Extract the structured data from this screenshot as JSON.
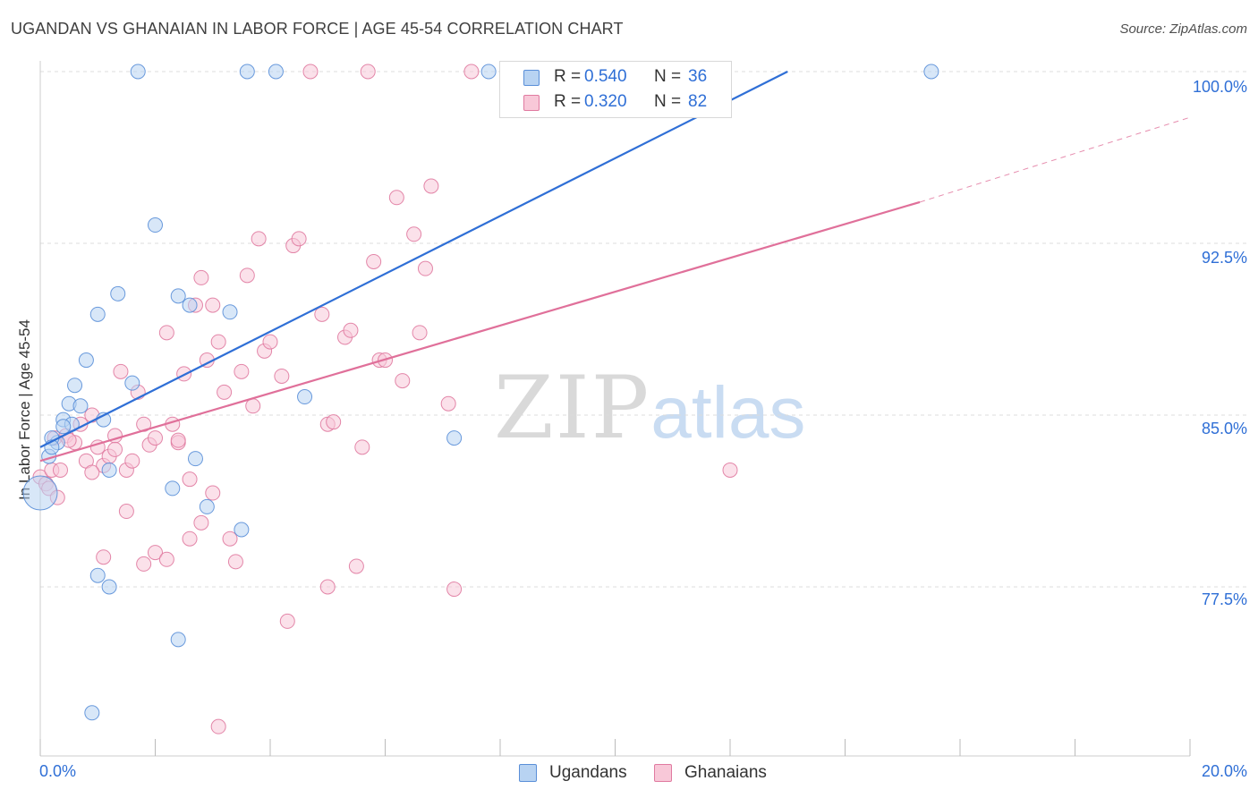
{
  "title": "UGANDAN VS GHANAIAN IN LABOR FORCE | AGE 45-54 CORRELATION CHART",
  "source": "Source: ZipAtlas.com",
  "watermark": {
    "zip": "ZIP",
    "atlas": "atlas"
  },
  "legend": {
    "rows": [
      {
        "r_label": "R =",
        "r_value": "0.540",
        "n_label": "N =",
        "n_value": "36",
        "fill": "#b8d3f2",
        "stroke": "#5a8fd8"
      },
      {
        "r_label": "R =",
        "r_value": "0.320",
        "n_label": "N =",
        "n_value": "82",
        "fill": "#f8c8d8",
        "stroke": "#e07aa0"
      }
    ]
  },
  "bottom_legend": [
    {
      "label": "Ugandans",
      "fill": "#b8d3f2",
      "stroke": "#5a8fd8"
    },
    {
      "label": "Ghanaians",
      "fill": "#f8c8d8",
      "stroke": "#e07aa0"
    }
  ],
  "chart_data": {
    "type": "scatter",
    "title": "UGANDAN VS GHANAIAN IN LABOR FORCE | AGE 45-54 CORRELATION CHART",
    "xlabel": "",
    "ylabel": "In Labor Force | Age 45-54",
    "xlim": [
      0,
      20
    ],
    "ylim": [
      71.2,
      100.8
    ],
    "x_tick_labels": [
      "0.0%",
      "20.0%"
    ],
    "x_minor_ticks": [
      0,
      2,
      4,
      6,
      8,
      10,
      12,
      14,
      16,
      18,
      20
    ],
    "y_ticks": [
      77.5,
      85.0,
      92.5,
      100.0
    ],
    "y_tick_labels": [
      "77.5%",
      "85.0%",
      "92.5%",
      "100.0%"
    ],
    "grid": true,
    "series": [
      {
        "name": "Ugandans",
        "color": "#5a8fd8",
        "fill": "#b8d3f2",
        "points": [
          [
            0.0,
            81.6
          ],
          [
            0.15,
            83.2
          ],
          [
            0.3,
            83.8
          ],
          [
            0.4,
            84.8
          ],
          [
            0.55,
            84.6
          ],
          [
            0.5,
            85.5
          ],
          [
            0.6,
            86.3
          ],
          [
            0.7,
            85.4
          ],
          [
            0.8,
            87.4
          ],
          [
            0.2,
            84.0
          ],
          [
            1.0,
            89.4
          ],
          [
            1.1,
            84.8
          ],
          [
            1.2,
            82.6
          ],
          [
            1.35,
            90.3
          ],
          [
            1.6,
            86.4
          ],
          [
            1.7,
            100.0
          ],
          [
            2.0,
            93.3
          ],
          [
            2.3,
            81.8
          ],
          [
            2.4,
            90.2
          ],
          [
            2.6,
            89.8
          ],
          [
            2.7,
            83.1
          ],
          [
            2.9,
            81.0
          ],
          [
            3.3,
            89.5
          ],
          [
            3.5,
            80.0
          ],
          [
            3.6,
            100.0
          ],
          [
            4.1,
            100.0
          ],
          [
            4.6,
            85.8
          ],
          [
            7.2,
            84.0
          ],
          [
            7.8,
            100.0
          ],
          [
            15.5,
            100.0
          ],
          [
            1.2,
            77.5
          ],
          [
            1.0,
            78.0
          ],
          [
            2.4,
            75.2
          ],
          [
            0.9,
            72.0
          ],
          [
            0.2,
            83.6
          ],
          [
            0.4,
            84.5
          ]
        ]
      },
      {
        "name": "Ghanaians",
        "color": "#e07aa0",
        "fill": "#f8c8d8",
        "points": [
          [
            0.0,
            82.3
          ],
          [
            0.1,
            82.0
          ],
          [
            0.15,
            81.8
          ],
          [
            0.2,
            82.6
          ],
          [
            0.3,
            81.4
          ],
          [
            0.25,
            84.0
          ],
          [
            0.35,
            82.6
          ],
          [
            0.45,
            84.1
          ],
          [
            0.6,
            83.8
          ],
          [
            0.7,
            84.6
          ],
          [
            0.8,
            83.0
          ],
          [
            0.9,
            85.0
          ],
          [
            1.0,
            83.6
          ],
          [
            1.1,
            82.8
          ],
          [
            1.2,
            83.2
          ],
          [
            1.3,
            84.1
          ],
          [
            1.4,
            86.9
          ],
          [
            1.5,
            82.6
          ],
          [
            1.6,
            83.0
          ],
          [
            1.7,
            86.0
          ],
          [
            1.8,
            84.6
          ],
          [
            1.9,
            83.7
          ],
          [
            2.0,
            84.0
          ],
          [
            2.2,
            88.6
          ],
          [
            2.3,
            84.6
          ],
          [
            2.4,
            83.8
          ],
          [
            2.5,
            86.8
          ],
          [
            2.6,
            82.2
          ],
          [
            2.7,
            89.8
          ],
          [
            2.8,
            91.0
          ],
          [
            2.9,
            87.4
          ],
          [
            3.0,
            89.8
          ],
          [
            3.1,
            88.2
          ],
          [
            3.2,
            86.0
          ],
          [
            3.3,
            79.6
          ],
          [
            3.4,
            78.6
          ],
          [
            3.5,
            86.9
          ],
          [
            3.6,
            91.1
          ],
          [
            3.7,
            85.4
          ],
          [
            3.8,
            92.7
          ],
          [
            3.9,
            87.8
          ],
          [
            4.0,
            88.2
          ],
          [
            4.2,
            86.7
          ],
          [
            4.4,
            92.4
          ],
          [
            4.5,
            92.7
          ],
          [
            4.7,
            100.0
          ],
          [
            4.9,
            89.4
          ],
          [
            5.0,
            84.6
          ],
          [
            5.1,
            84.7
          ],
          [
            5.3,
            88.4
          ],
          [
            5.4,
            88.7
          ],
          [
            5.5,
            78.4
          ],
          [
            5.6,
            83.6
          ],
          [
            5.7,
            100.0
          ],
          [
            5.8,
            91.7
          ],
          [
            5.9,
            87.4
          ],
          [
            6.0,
            87.4
          ],
          [
            6.2,
            94.5
          ],
          [
            6.3,
            86.5
          ],
          [
            6.5,
            92.9
          ],
          [
            6.6,
            88.6
          ],
          [
            6.7,
            91.4
          ],
          [
            6.8,
            95.0
          ],
          [
            7.1,
            85.5
          ],
          [
            7.2,
            77.4
          ],
          [
            7.5,
            100.0
          ],
          [
            12.0,
            82.6
          ],
          [
            1.5,
            80.8
          ],
          [
            1.8,
            78.5
          ],
          [
            2.0,
            79.0
          ],
          [
            2.2,
            78.7
          ],
          [
            2.6,
            79.6
          ],
          [
            2.8,
            80.3
          ],
          [
            3.1,
            71.4
          ],
          [
            1.1,
            78.8
          ],
          [
            4.3,
            76.0
          ],
          [
            5.0,
            77.5
          ],
          [
            0.5,
            83.9
          ],
          [
            0.9,
            82.5
          ],
          [
            1.3,
            83.5
          ],
          [
            2.4,
            83.9
          ],
          [
            3.0,
            81.6
          ]
        ]
      }
    ],
    "trend_lines": [
      {
        "series": "Ugandans",
        "x0": 0.0,
        "y0": 83.6,
        "x1": 13.0,
        "y1": 100.0,
        "color": "#2f6fd6",
        "dashed_extension": false
      },
      {
        "series": "Ghanaians",
        "x0": 0.0,
        "y0": 83.0,
        "x1": 15.3,
        "y1": 94.3,
        "color": "#e0709a",
        "dashed_to_x": 20.0,
        "dashed_to_y": 98.0
      }
    ]
  }
}
